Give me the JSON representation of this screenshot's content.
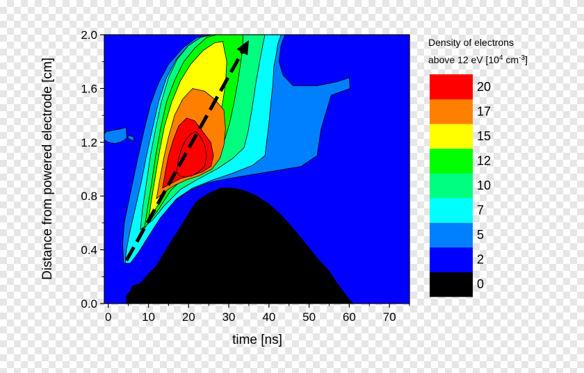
{
  "chart_data": {
    "type": "heatmap",
    "title": "",
    "xlabel": "time [ns]",
    "ylabel": "Distance from powered electrode [cm]",
    "xlim": [
      -1,
      75
    ],
    "ylim": [
      0,
      2
    ],
    "x_ticks": [
      0,
      10,
      20,
      30,
      40,
      50,
      60,
      70
    ],
    "y_ticks": [
      "0.0",
      "0.4",
      "0.8",
      "1.2",
      "1.6",
      "2.0"
    ],
    "colorbar": {
      "title_line1": "Density of electrons",
      "title_line2_prefix": "above 12 eV [10",
      "title_line2_sup1": "4",
      "title_line2_mid": " cm",
      "title_line2_sup2": "-3",
      "title_line2_suffix": "]",
      "levels": [
        "0",
        "2",
        "5",
        "7",
        "10",
        "12",
        "15",
        "17",
        "20"
      ],
      "colors": [
        "#000000",
        "#0000ff",
        "#0080ff",
        "#00ffff",
        "#00ff80",
        "#00ff00",
        "#ffff00",
        "#ff8000",
        "#ff0000"
      ]
    },
    "regions": [
      {
        "level": 0,
        "points": [
          [
            4.5,
            0
          ],
          [
            4.5,
            0.06
          ],
          [
            5.5,
            0.09
          ],
          [
            6,
            0.13
          ],
          [
            8,
            0.15
          ],
          [
            10,
            0.22
          ],
          [
            12,
            0.28
          ],
          [
            14,
            0.38
          ],
          [
            16,
            0.48
          ],
          [
            18,
            0.57
          ],
          [
            20,
            0.67
          ],
          [
            22,
            0.76
          ],
          [
            25,
            0.82
          ],
          [
            28,
            0.86
          ],
          [
            31,
            0.86
          ],
          [
            34,
            0.84
          ],
          [
            37,
            0.8
          ],
          [
            40,
            0.74
          ],
          [
            43,
            0.66
          ],
          [
            46,
            0.56
          ],
          [
            49,
            0.45
          ],
          [
            52,
            0.34
          ],
          [
            55,
            0.24
          ],
          [
            57,
            0.15
          ],
          [
            58.5,
            0.09
          ],
          [
            60,
            0.03
          ],
          [
            61,
            0
          ]
        ]
      },
      {
        "level": 2,
        "points": [
          [
            3.8,
            0.3
          ],
          [
            3.6,
            0.45
          ],
          [
            4,
            0.6
          ],
          [
            5,
            0.75
          ],
          [
            6.2,
            0.92
          ],
          [
            7.5,
            1.1
          ],
          [
            9,
            1.3
          ],
          [
            10.5,
            1.48
          ],
          [
            12.5,
            1.64
          ],
          [
            15,
            1.78
          ],
          [
            18.5,
            1.9
          ],
          [
            22,
            1.98
          ],
          [
            26,
            2
          ],
          [
            44,
            2
          ],
          [
            43,
            1.92
          ],
          [
            42.5,
            1.8
          ],
          [
            43.5,
            1.7
          ],
          [
            46,
            1.62
          ],
          [
            52,
            1.62
          ],
          [
            57,
            1.65
          ],
          [
            60,
            1.68
          ],
          [
            60.2,
            1.6
          ],
          [
            55.5,
            1.55
          ],
          [
            53,
            1.3
          ],
          [
            52,
            1.1
          ],
          [
            48,
            1.02
          ],
          [
            42,
            0.99
          ],
          [
            36,
            0.96
          ],
          [
            30,
            0.93
          ],
          [
            25,
            0.9
          ],
          [
            20,
            0.84
          ],
          [
            16,
            0.75
          ],
          [
            12,
            0.61
          ],
          [
            9,
            0.48
          ],
          [
            6.5,
            0.37
          ],
          [
            5,
            0.3
          ]
        ]
      },
      {
        "level": 5,
        "points": [
          [
            4.2,
            0.3
          ],
          [
            4.5,
            0.4
          ],
          [
            5.5,
            0.55
          ],
          [
            6.8,
            0.72
          ],
          [
            8.2,
            0.9
          ],
          [
            9.5,
            1.1
          ],
          [
            11,
            1.3
          ],
          [
            12.5,
            1.5
          ],
          [
            14.5,
            1.68
          ],
          [
            17,
            1.82
          ],
          [
            20,
            1.92
          ],
          [
            23,
            1.98
          ],
          [
            26,
            2
          ],
          [
            43,
            2
          ],
          [
            42.2,
            1.93
          ],
          [
            41.8,
            1.85
          ],
          [
            41.2,
            1.76
          ],
          [
            41,
            1.64
          ],
          [
            40.5,
            1.5
          ],
          [
            40,
            1.34
          ],
          [
            39.5,
            1.22
          ],
          [
            39,
            1.1
          ],
          [
            36,
            1.03
          ],
          [
            31,
            0.97
          ],
          [
            26,
            0.92
          ],
          [
            21,
            0.86
          ],
          [
            17,
            0.78
          ],
          [
            13,
            0.64
          ],
          [
            10,
            0.5
          ],
          [
            7.5,
            0.38
          ],
          [
            5.5,
            0.3
          ]
        ]
      },
      {
        "level": 7,
        "points": [
          [
            8,
            0.55
          ],
          [
            8.5,
            0.7
          ],
          [
            9.5,
            0.9
          ],
          [
            10.5,
            1.1
          ],
          [
            11.8,
            1.3
          ],
          [
            13.2,
            1.5
          ],
          [
            15,
            1.68
          ],
          [
            17.2,
            1.82
          ],
          [
            20,
            1.92
          ],
          [
            23,
            1.98
          ],
          [
            26,
            2
          ],
          [
            39,
            2
          ],
          [
            38.5,
            1.93
          ],
          [
            37.7,
            1.8
          ],
          [
            36.8,
            1.65
          ],
          [
            35.8,
            1.45
          ],
          [
            34.8,
            1.28
          ],
          [
            33.8,
            1.16
          ],
          [
            31,
            1.08
          ],
          [
            27,
            1
          ],
          [
            22,
            0.92
          ],
          [
            18,
            0.85
          ],
          [
            14,
            0.73
          ],
          [
            11,
            0.62
          ]
        ]
      },
      {
        "level": 10,
        "points": [
          [
            9,
            0.56
          ],
          [
            9.8,
            0.72
          ],
          [
            10.8,
            0.9
          ],
          [
            11.8,
            1.1
          ],
          [
            13,
            1.3
          ],
          [
            14.5,
            1.5
          ],
          [
            16.5,
            1.66
          ],
          [
            18.8,
            1.8
          ],
          [
            21.5,
            1.9
          ],
          [
            24.5,
            1.98
          ],
          [
            27,
            2
          ],
          [
            33.5,
            2
          ],
          [
            33.5,
            1.92
          ],
          [
            33,
            1.8
          ],
          [
            32.2,
            1.64
          ],
          [
            31.2,
            1.48
          ],
          [
            30.2,
            1.34
          ],
          [
            29,
            1.22
          ],
          [
            27,
            1.1
          ],
          [
            23,
            1
          ],
          [
            19,
            0.94
          ],
          [
            15.5,
            0.84
          ],
          [
            12.5,
            0.7
          ]
        ]
      },
      {
        "level": 12,
        "points": [
          [
            10,
            0.62
          ],
          [
            10.8,
            0.78
          ],
          [
            11.8,
            0.96
          ],
          [
            12.8,
            1.14
          ],
          [
            14,
            1.32
          ],
          [
            15.8,
            1.5
          ],
          [
            18,
            1.66
          ],
          [
            20.5,
            1.78
          ],
          [
            23.5,
            1.88
          ],
          [
            26.5,
            1.94
          ],
          [
            28.5,
            1.95
          ],
          [
            29.5,
            1.8
          ],
          [
            29.2,
            1.64
          ],
          [
            28.5,
            1.5
          ],
          [
            27.5,
            1.36
          ],
          [
            26.3,
            1.24
          ],
          [
            24.5,
            1.14
          ],
          [
            21.5,
            1.04
          ],
          [
            18,
            0.97
          ],
          [
            15,
            0.87
          ],
          [
            12.5,
            0.74
          ]
        ]
      },
      {
        "level": 15,
        "points": [
          [
            12,
            0.78
          ],
          [
            12.8,
            0.92
          ],
          [
            13.8,
            1.08
          ],
          [
            15,
            1.24
          ],
          [
            16.5,
            1.4
          ],
          [
            18.5,
            1.52
          ],
          [
            21,
            1.6
          ],
          [
            24,
            1.58
          ],
          [
            26.5,
            1.52
          ],
          [
            28.8,
            1.44
          ],
          [
            29.2,
            1.3
          ],
          [
            28.8,
            1.18
          ],
          [
            27.8,
            1.08
          ],
          [
            25.8,
            1
          ],
          [
            22.5,
            0.95
          ],
          [
            19.5,
            0.92
          ],
          [
            16.5,
            0.88
          ],
          [
            14,
            0.83
          ]
        ]
      },
      {
        "level": 17,
        "points": [
          [
            13.5,
            0.86
          ],
          [
            14.2,
            0.98
          ],
          [
            15,
            1.1
          ],
          [
            16.2,
            1.22
          ],
          [
            17.5,
            1.32
          ],
          [
            19.5,
            1.38
          ],
          [
            21.5,
            1.36
          ],
          [
            23.5,
            1.28
          ],
          [
            25.5,
            1.2
          ],
          [
            26.2,
            1.1
          ],
          [
            25.6,
            1.02
          ],
          [
            23.5,
            0.98
          ],
          [
            20.5,
            0.95
          ],
          [
            18,
            0.93
          ],
          [
            15.5,
            0.89
          ]
        ]
      },
      {
        "level": 20,
        "points": [
          [
            17,
            0.98
          ],
          [
            17.5,
            1.08
          ],
          [
            18.3,
            1.16
          ],
          [
            19.3,
            1.22
          ],
          [
            20.5,
            1.26
          ],
          [
            21.8,
            1.28
          ],
          [
            23,
            1.24
          ],
          [
            24,
            1.18
          ],
          [
            24.5,
            1.1
          ],
          [
            24,
            1.02
          ],
          [
            22.5,
            0.98
          ],
          [
            20.8,
            0.95
          ],
          [
            19,
            0.94
          ],
          [
            17.8,
            0.95
          ]
        ]
      }
    ],
    "lobe": [
      [
        4.4,
        1.31
      ],
      [
        3.3,
        1.3
      ],
      [
        1.5,
        1.29
      ],
      [
        -0.5,
        1.28
      ],
      [
        -1,
        1.26
      ],
      [
        -1,
        1.22
      ],
      [
        0,
        1.2
      ],
      [
        1.5,
        1.19
      ],
      [
        3,
        1.2
      ],
      [
        4.2,
        1.22
      ],
      [
        5.2,
        1.25
      ],
      [
        6.2,
        1.24
      ],
      [
        6.5,
        1.21
      ],
      [
        5.5,
        1.22
      ],
      [
        4.6,
        1.24
      ]
    ],
    "arrow": {
      "from": [
        4.5,
        0.32
      ],
      "to": [
        35,
        1.96
      ]
    }
  }
}
